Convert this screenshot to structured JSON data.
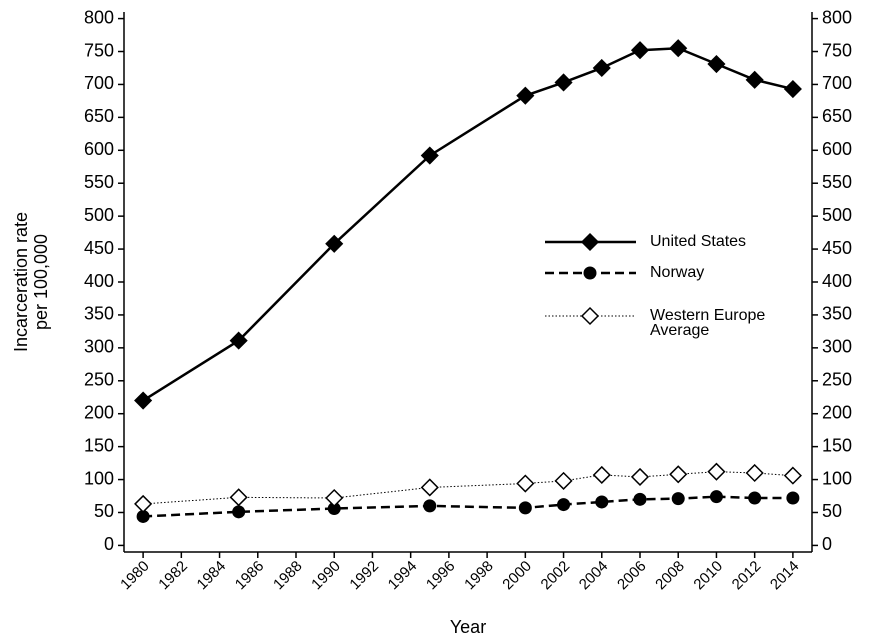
{
  "chart_data": {
    "type": "line",
    "x_label": "Year",
    "y_label": [
      "Incarceration rate",
      "per 100,000"
    ],
    "x": [
      1980,
      1985,
      1990,
      1995,
      2000,
      2002,
      2004,
      2006,
      2008,
      2010,
      2012,
      2014
    ],
    "series": [
      {
        "name": "United States",
        "color": "#000000",
        "dash": "solid",
        "marker": "diamond",
        "values": [
          220,
          311,
          458,
          592,
          683,
          703,
          725,
          752,
          755,
          731,
          707,
          693
        ]
      },
      {
        "name": "Norway",
        "color": "#000000",
        "dash": "dashed",
        "marker": "circle",
        "values": [
          44,
          51,
          56,
          60,
          57,
          62,
          66,
          70,
          71,
          74,
          72,
          72
        ]
      },
      {
        "name": "Western Europe Average",
        "color": "#000000",
        "dash": "dotted",
        "marker": "open-diamond",
        "values": [
          63,
          73,
          72,
          88,
          94,
          98,
          107,
          104,
          108,
          112,
          110,
          106
        ]
      }
    ],
    "xlim": [
      1979,
      2015
    ],
    "xticks": [
      1980,
      1982,
      1984,
      1986,
      1988,
      1990,
      1992,
      1994,
      1996,
      1998,
      2000,
      2002,
      2004,
      2006,
      2008,
      2010,
      2012,
      2014
    ],
    "ylim": [
      -10,
      810
    ],
    "yticks": [
      0,
      50,
      100,
      150,
      200,
      250,
      300,
      350,
      400,
      450,
      500,
      550,
      600,
      650,
      700,
      750,
      800
    ],
    "y2lim": [
      -10,
      810
    ],
    "y2ticks": [
      0,
      50,
      100,
      150,
      200,
      250,
      300,
      350,
      400,
      450,
      500,
      550,
      600,
      650,
      700,
      750,
      800
    ],
    "grid": false,
    "legend": "right"
  }
}
